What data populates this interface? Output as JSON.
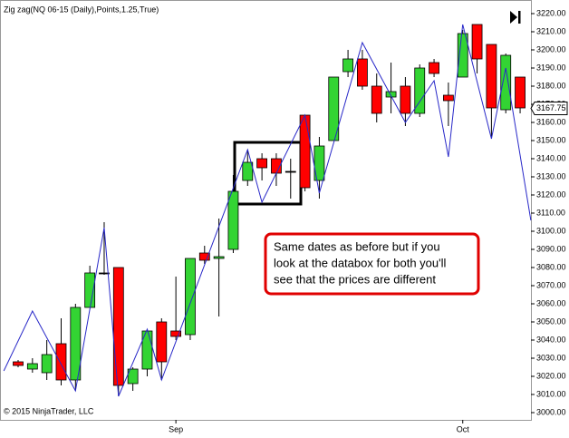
{
  "chart_data": {
    "type": "candlestick",
    "title": "Zig zag(NQ 06-15 (Daily),Points,1.25,True)",
    "copyright": "© 2015 NinjaTrader, LLC",
    "categories": [
      null,
      null,
      null,
      null,
      null,
      null,
      null,
      null,
      null,
      null,
      null,
      "Sep",
      null,
      null,
      null,
      null,
      null,
      null,
      null,
      null,
      null,
      null,
      null,
      null,
      null,
      null,
      null,
      null,
      null,
      null,
      null,
      "Oct",
      null,
      null,
      null,
      null
    ],
    "open": [
      3028,
      3024,
      3022,
      3038,
      3018,
      3058,
      3077,
      3080,
      3016,
      3024,
      3050,
      3045,
      3043,
      3088,
      3085,
      3090,
      3128,
      3140,
      3140,
      3133,
      3164,
      3128,
      3150,
      3188,
      3195,
      3180,
      3174,
      3180,
      3165,
      3193,
      3175,
      3185,
      3214,
      3203,
      3167,
      3185
    ],
    "high": [
      3029,
      3030,
      3040,
      3052,
      3060,
      3081,
      3105,
      3080,
      3025,
      3046,
      3052,
      3075,
      3085,
      3092,
      3107,
      3131,
      3145,
      3143,
      3143,
      3140,
      3164,
      3152,
      3185,
      3200,
      3200,
      3187,
      3193,
      3185,
      3192,
      3195,
      3182,
      3211,
      3214,
      3203,
      3198,
      3185
    ],
    "low": [
      3025,
      3022,
      3018,
      3015,
      3012,
      3058,
      3076,
      3009,
      3012,
      3020,
      3018,
      3040,
      3040,
      3082,
      3053,
      3088,
      3125,
      3128,
      3125,
      3118,
      3122,
      3118,
      3150,
      3185,
      3178,
      3160,
      3165,
      3158,
      3163,
      3185,
      3158,
      3185,
      3187,
      3152,
      3165,
      3165
    ],
    "close": [
      3026,
      3027,
      3032,
      3018,
      3058,
      3077,
      3077,
      3015,
      3024,
      3045,
      3028,
      3042,
      3085,
      3084,
      3086,
      3122,
      3138,
      3135,
      3132,
      3133,
      3124,
      3147,
      3185,
      3195,
      3180,
      3165,
      3177,
      3165,
      3190,
      3187,
      3172,
      3209,
      3195,
      3168,
      3197,
      3168
    ],
    "up_color": "#33d433",
    "down_color": "#ff0000",
    "zigzag": {
      "color": "#2828c8",
      "x": [
        -1,
        1,
        4,
        6,
        7,
        9,
        10,
        16,
        17,
        20,
        21,
        24,
        27,
        29,
        30,
        31,
        33,
        34,
        35.75
      ],
      "values": [
        3023,
        3056,
        3012,
        3102,
        3009,
        3046,
        3018,
        3145,
        3116,
        3164,
        3121,
        3204,
        3160,
        3183,
        3141,
        3214,
        3151,
        3190,
        3106
      ]
    },
    "last_price": 3167.75,
    "annotation": [
      "Same dates as before but if you",
      "look at the databox for both you'll",
      "see that the prices are different"
    ],
    "ylim": [
      2996,
      3225
    ],
    "yticks": [
      {
        "value": 3000,
        "label": "3000.00"
      },
      {
        "value": 3010,
        "label": "3010.00"
      },
      {
        "value": 3020,
        "label": "3020.00"
      },
      {
        "value": 3030,
        "label": "3030.00"
      },
      {
        "value": 3040,
        "label": "3040.00"
      },
      {
        "value": 3050,
        "label": "3050.00"
      },
      {
        "value": 3060,
        "label": "3060.00"
      },
      {
        "value": 3070,
        "label": "3070.00"
      },
      {
        "value": 3080,
        "label": "3080.00"
      },
      {
        "value": 3090,
        "label": "3090.00"
      },
      {
        "value": 3100,
        "label": "3100.00"
      },
      {
        "value": 3110,
        "label": "3110.00"
      },
      {
        "value": 3120,
        "label": "3120.00"
      },
      {
        "value": 3130,
        "label": "3130.00"
      },
      {
        "value": 3140,
        "label": "3140.00"
      },
      {
        "value": 3150,
        "label": "3150.00"
      },
      {
        "value": 3160,
        "label": "3160.00"
      },
      {
        "value": 3170,
        "label": "3170.00"
      },
      {
        "value": 3180,
        "label": "3180.00"
      },
      {
        "value": 3190,
        "label": "3190.00"
      },
      {
        "value": 3200,
        "label": "3200.00"
      },
      {
        "value": 3210,
        "label": "3210.00"
      },
      {
        "value": 3220,
        "label": "3220.00"
      }
    ],
    "grid": false
  }
}
